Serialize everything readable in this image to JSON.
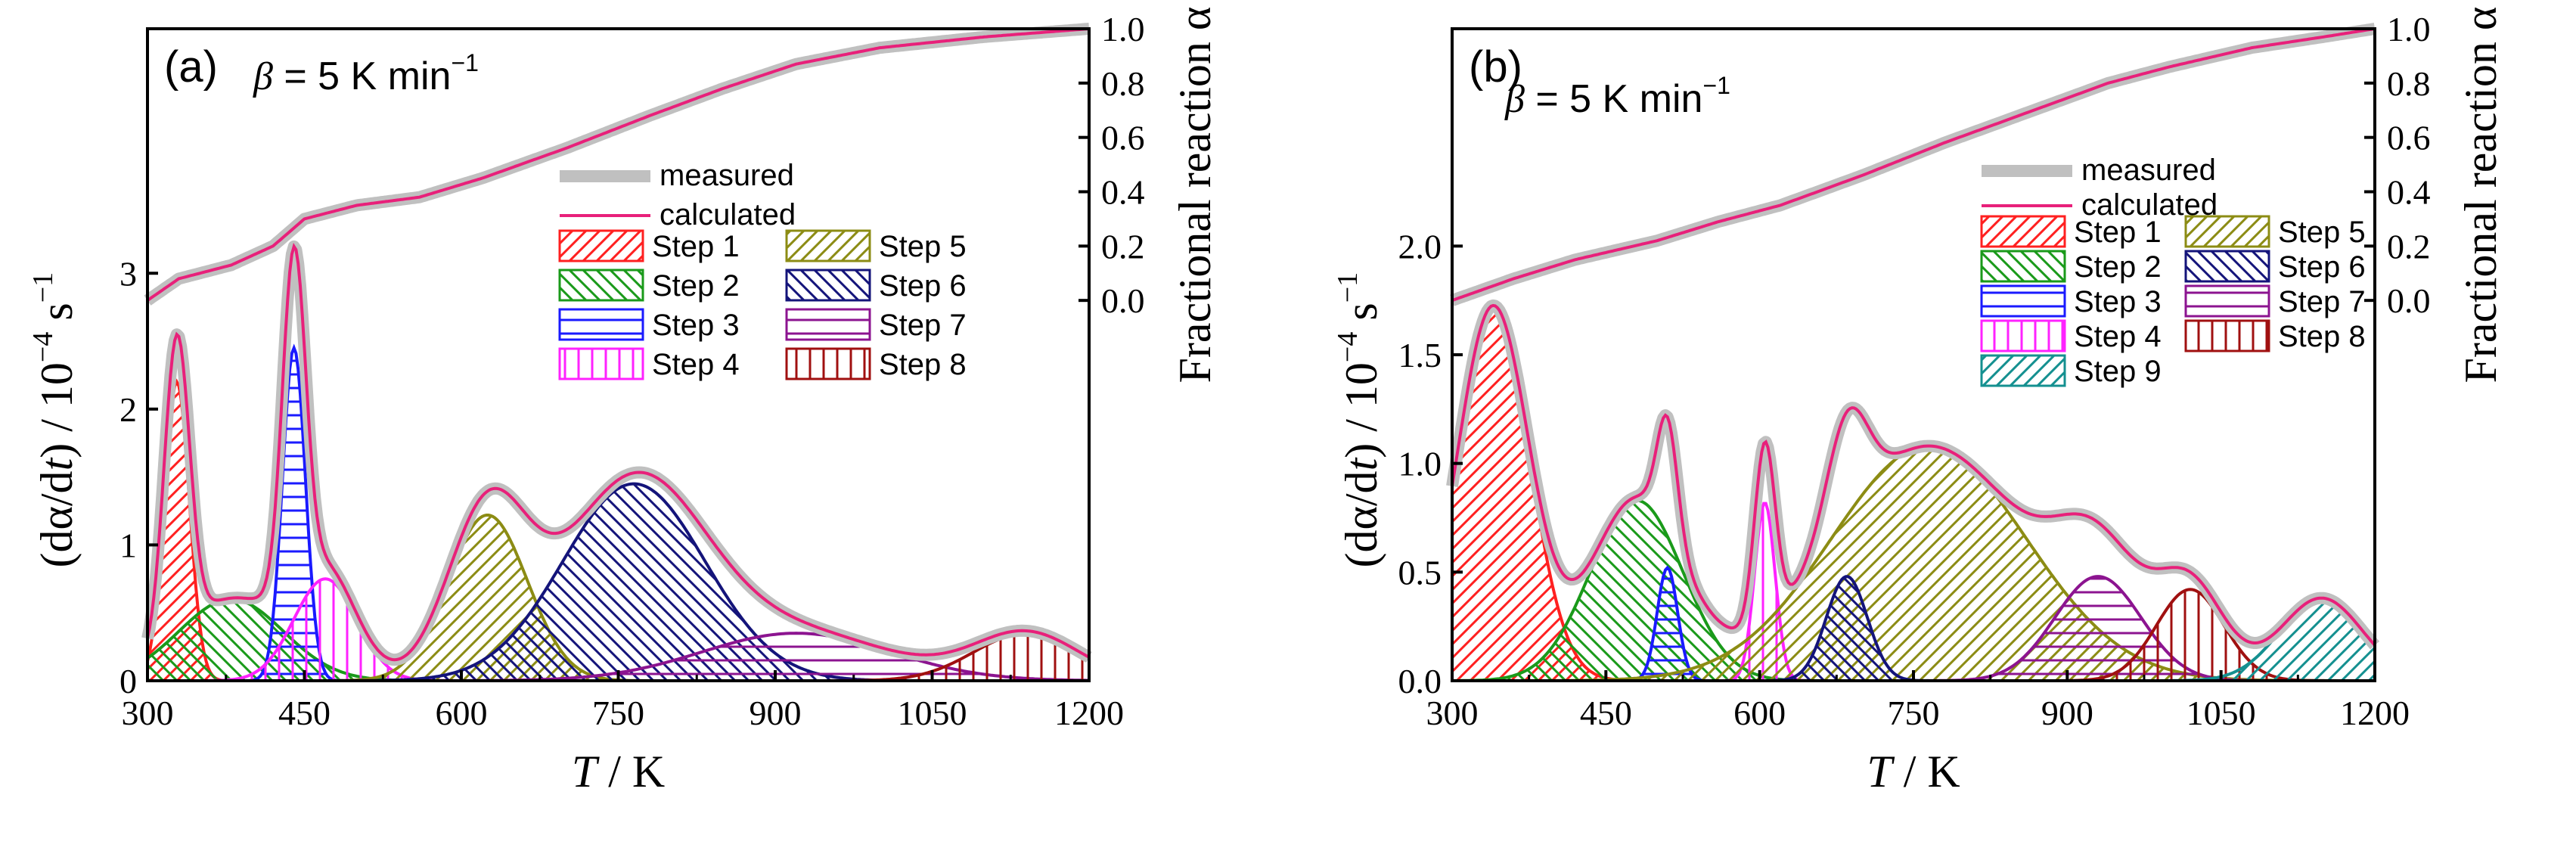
{
  "chart_data": [
    {
      "type": "line",
      "panel_label": "(a)",
      "annotation": {
        "symbol": "β",
        "text": " = 5 K min",
        "superscript": "−1"
      },
      "xlabel": {
        "var": "T",
        "unit": " / K"
      },
      "ylabel_left": {
        "prefix": "(dα/d",
        "var": "t",
        "suffix": ") / 10",
        "exp1": "−4",
        "mid": " s",
        "exp2": "−1"
      },
      "ylabel_right": "Fractional reaction α",
      "xlim": [
        300,
        1200
      ],
      "xticks": [
        "300",
        "450",
        "600",
        "750",
        "900",
        "1050",
        "1200"
      ],
      "xtick_values": [
        300,
        450,
        600,
        750,
        900,
        1050,
        1200
      ],
      "ylim_left": [
        0,
        4.8
      ],
      "yticks_left": [
        "0",
        "1",
        "2",
        "3"
      ],
      "ytick_left_values": [
        0,
        1,
        2,
        3
      ],
      "ylim_right_display": [
        -1.4,
        1.0
      ],
      "yticks_right": [
        "0.0",
        "0.2",
        "0.4",
        "0.6",
        "0.8",
        "1.0"
      ],
      "ytick_right_values": [
        0,
        0.2,
        0.4,
        0.6,
        0.8,
        1.0
      ],
      "legend": {
        "measured": "measured",
        "calculated": "calculated",
        "steps": [
          "Step 1",
          "Step 5",
          "Step 2",
          "Step 6",
          "Step 3",
          "Step 7",
          "Step 4",
          "Step 8"
        ]
      },
      "steps": [
        {
          "name": "Step 1",
          "center": 328,
          "height": 2.2,
          "sigma": 12,
          "color": "#ff2020",
          "pattern": "diag-r"
        },
        {
          "name": "Step 2",
          "center": 380,
          "height": 0.6,
          "sigma": 50,
          "color": "#1a9a1a",
          "pattern": "diag-l"
        },
        {
          "name": "Step 3",
          "center": 440,
          "height": 2.45,
          "sigma": 11,
          "color": "#1a1aff",
          "pattern": "horiz"
        },
        {
          "name": "Step 4",
          "center": 470,
          "height": 0.75,
          "sigma": 30,
          "color": "#ff22ff",
          "pattern": "vert"
        },
        {
          "name": "Step 5",
          "center": 625,
          "height": 1.22,
          "sigma": 38,
          "color": "#8c8c14",
          "pattern": "diag-r"
        },
        {
          "name": "Step 6",
          "center": 765,
          "height": 1.45,
          "sigma": 68,
          "color": "#14147a",
          "pattern": "diag-l"
        },
        {
          "name": "Step 7",
          "center": 920,
          "height": 0.35,
          "sigma": 90,
          "color": "#8c1490",
          "pattern": "horiz"
        },
        {
          "name": "Step 8",
          "center": 1140,
          "height": 0.35,
          "sigma": 50,
          "color": "#a01010",
          "pattern": "vert"
        }
      ],
      "fraction_curve": [
        [
          300,
          0.0
        ],
        [
          330,
          0.08
        ],
        [
          380,
          0.13
        ],
        [
          420,
          0.2
        ],
        [
          450,
          0.3
        ],
        [
          500,
          0.35
        ],
        [
          560,
          0.38
        ],
        [
          620,
          0.45
        ],
        [
          700,
          0.56
        ],
        [
          780,
          0.68
        ],
        [
          850,
          0.78
        ],
        [
          920,
          0.87
        ],
        [
          1000,
          0.93
        ],
        [
          1100,
          0.97
        ],
        [
          1200,
          1.0
        ]
      ]
    },
    {
      "type": "line",
      "panel_label": "(b)",
      "annotation": {
        "symbol": "β",
        "text": " = 5 K min",
        "superscript": "−1"
      },
      "xlabel": {
        "var": "T",
        "unit": " / K"
      },
      "ylabel_left": {
        "prefix": "(dα/d",
        "var": "t",
        "suffix": ") / 10",
        "exp1": "−4",
        "mid": " s",
        "exp2": "−1"
      },
      "ylabel_right": "Fractional reaction α",
      "xlim": [
        300,
        1200
      ],
      "xticks": [
        "300",
        "450",
        "600",
        "750",
        "900",
        "1050",
        "1200"
      ],
      "xtick_values": [
        300,
        450,
        600,
        750,
        900,
        1050,
        1200
      ],
      "ylim_left": [
        0,
        3.0
      ],
      "yticks_left": [
        "0.0",
        "0.5",
        "1.0",
        "1.5",
        "2.0"
      ],
      "ytick_left_values": [
        0,
        0.5,
        1.0,
        1.5,
        2.0
      ],
      "ylim_right_display": [
        -1.4,
        1.0
      ],
      "yticks_right": [
        "0.0",
        "0.2",
        "0.4",
        "0.6",
        "0.8",
        "1.0"
      ],
      "ytick_right_values": [
        0,
        0.2,
        0.4,
        0.6,
        0.8,
        1.0
      ],
      "legend": {
        "measured": "measured",
        "calculated": "calculated",
        "steps": [
          "Step 1",
          "Step 5",
          "Step 2",
          "Step 6",
          "Step 3",
          "Step 7",
          "Step 4",
          "Step 8",
          "Step 9"
        ]
      },
      "steps": [
        {
          "name": "Step 1",
          "center": 340,
          "height": 1.72,
          "sigma": 35,
          "color": "#ff2020",
          "pattern": "diag-r"
        },
        {
          "name": "Step 2",
          "center": 480,
          "height": 0.83,
          "sigma": 45,
          "color": "#1a9a1a",
          "pattern": "diag-l"
        },
        {
          "name": "Step 3",
          "center": 510,
          "height": 0.52,
          "sigma": 10,
          "color": "#1a1aff",
          "pattern": "horiz"
        },
        {
          "name": "Step 4",
          "center": 605,
          "height": 0.82,
          "sigma": 10,
          "color": "#ff22ff",
          "pattern": "vert"
        },
        {
          "name": "Step 5",
          "center": 765,
          "height": 1.08,
          "sigma": 95,
          "color": "#8c8c14",
          "pattern": "diag-r"
        },
        {
          "name": "Step 6",
          "center": 685,
          "height": 0.48,
          "sigma": 20,
          "color": "#14147a",
          "pattern": "diag-l"
        },
        {
          "name": "Step 7",
          "center": 930,
          "height": 0.48,
          "sigma": 42,
          "color": "#8c1490",
          "pattern": "horiz"
        },
        {
          "name": "Step 8",
          "center": 1020,
          "height": 0.42,
          "sigma": 33,
          "color": "#a01010",
          "pattern": "vert"
        },
        {
          "name": "Step 9",
          "center": 1148,
          "height": 0.38,
          "sigma": 40,
          "color": "#149090",
          "pattern": "diag-r"
        }
      ],
      "fraction_curve": [
        [
          300,
          0.0
        ],
        [
          360,
          0.08
        ],
        [
          420,
          0.15
        ],
        [
          500,
          0.22
        ],
        [
          560,
          0.29
        ],
        [
          620,
          0.35
        ],
        [
          700,
          0.46
        ],
        [
          780,
          0.58
        ],
        [
          860,
          0.69
        ],
        [
          940,
          0.8
        ],
        [
          1000,
          0.86
        ],
        [
          1080,
          0.93
        ],
        [
          1150,
          0.97
        ],
        [
          1200,
          1.0
        ]
      ]
    }
  ]
}
